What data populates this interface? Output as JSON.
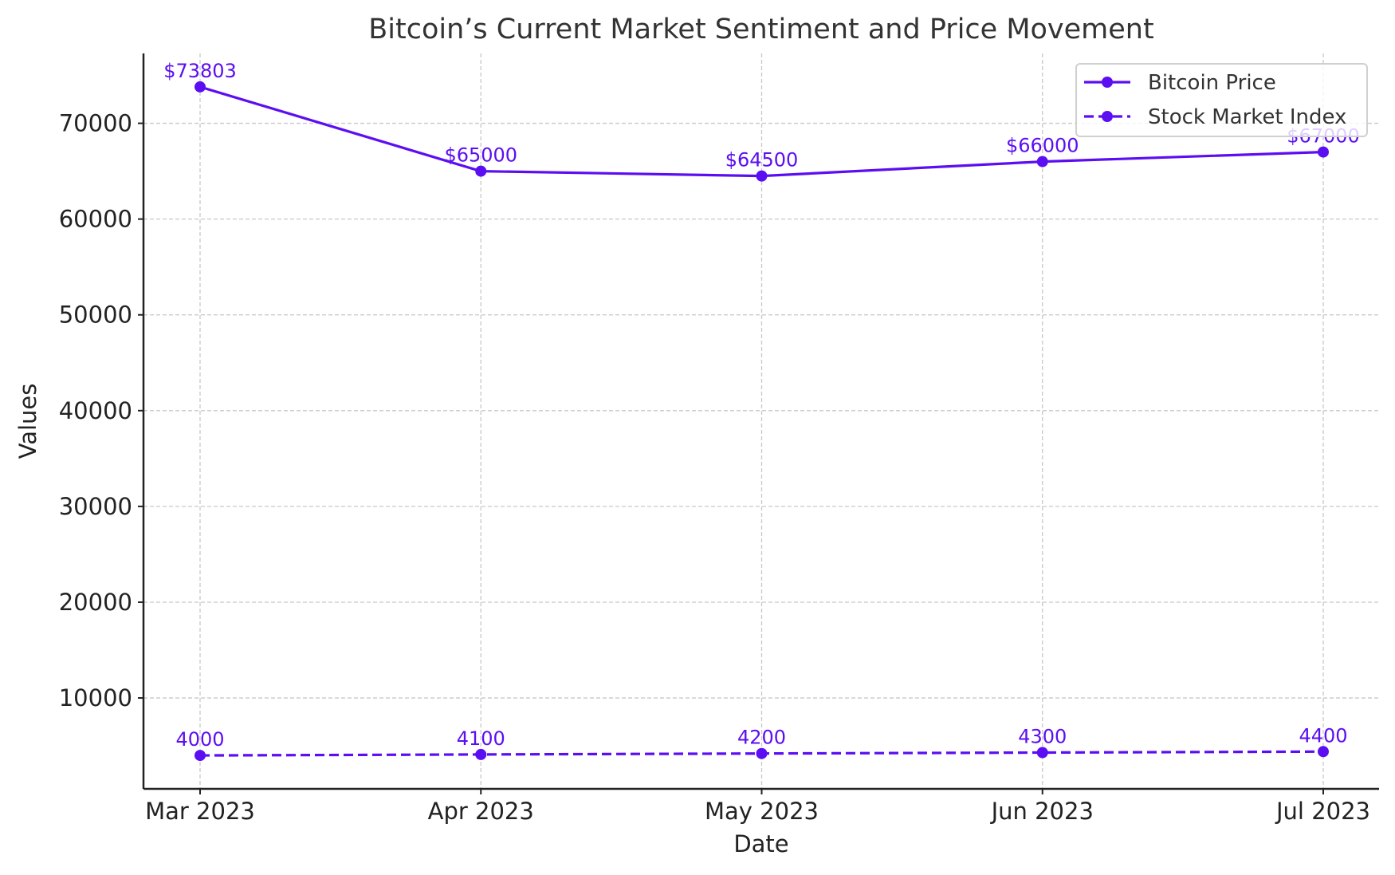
{
  "chart_data": {
    "type": "line",
    "title": "Bitcoin’s Current Market Sentiment and Price Movement",
    "xlabel": "Date",
    "ylabel": "Values",
    "categories": [
      "Mar 2023",
      "Apr 2023",
      "May 2023",
      "Jun 2023",
      "Jul 2023"
    ],
    "ylim": [
      510,
      77293
    ],
    "yticks": [
      10000,
      20000,
      30000,
      40000,
      50000,
      60000,
      70000
    ],
    "grid": true,
    "legend_placement": "top-right",
    "series": [
      {
        "name": "Bitcoin Price",
        "style": "solid",
        "values": [
          73803,
          65000,
          64500,
          66000,
          67000
        ],
        "labels": [
          "$73803",
          "$65000",
          "$64500",
          "$66000",
          "$67000"
        ]
      },
      {
        "name": "Stock Market Index",
        "style": "dashed",
        "values": [
          4000,
          4100,
          4200,
          4300,
          4400
        ],
        "labels": [
          "4000",
          "4100",
          "4200",
          "4300",
          "4400"
        ]
      }
    ],
    "color": "#5c0ef2"
  }
}
